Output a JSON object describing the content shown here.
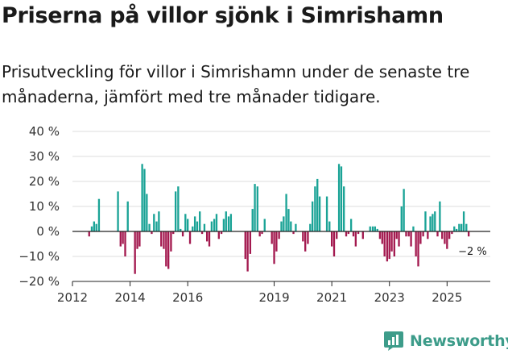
{
  "header": {
    "title": "Priserna på villor sjönk i Simrishamn",
    "subtitle": "Prisutveckling för villor i Simrishamn under de senaste tre månaderna, jämfört med tre månader tidigare."
  },
  "brand": {
    "name": "Newsworthy"
  },
  "colors": {
    "positive": "#1aa396",
    "negative": "#a3194f",
    "grid": "#dddddd",
    "axis": "#222222",
    "brand": "#3d9c8a"
  },
  "chart_data": {
    "type": "bar",
    "title": "",
    "xlabel": "",
    "ylabel": "",
    "ylim": [
      -20,
      40
    ],
    "y_ticks": [
      40,
      30,
      20,
      10,
      0,
      -10,
      -20
    ],
    "y_tick_labels": [
      "40 %",
      "30 %",
      "20 %",
      "10 %",
      "0 %",
      "−10 %",
      "−20 %"
    ],
    "xlim": [
      2012,
      2026.5
    ],
    "x_ticks": [
      2012,
      2014,
      2016,
      2019,
      2021,
      2023,
      2025
    ],
    "x_tick_labels": [
      "2012",
      "2014",
      "2016",
      "2019",
      "2021",
      "2023",
      "2025"
    ],
    "series": [
      {
        "name": "Prisutveckling",
        "points": [
          [
            2012.58,
            -2
          ],
          [
            2012.67,
            2
          ],
          [
            2012.75,
            4
          ],
          [
            2012.83,
            3
          ],
          [
            2012.92,
            13
          ],
          [
            2013.58,
            16
          ],
          [
            2013.67,
            -6
          ],
          [
            2013.75,
            -5
          ],
          [
            2013.83,
            -10
          ],
          [
            2013.92,
            12
          ],
          [
            2014.17,
            -17
          ],
          [
            2014.25,
            -7
          ],
          [
            2014.33,
            -6
          ],
          [
            2014.42,
            27
          ],
          [
            2014.5,
            25
          ],
          [
            2014.58,
            15
          ],
          [
            2014.67,
            3
          ],
          [
            2014.75,
            -1
          ],
          [
            2014.83,
            7
          ],
          [
            2014.92,
            4
          ],
          [
            2015.0,
            8
          ],
          [
            2015.08,
            -6
          ],
          [
            2015.17,
            -7
          ],
          [
            2015.25,
            -14
          ],
          [
            2015.33,
            -15
          ],
          [
            2015.42,
            -8
          ],
          [
            2015.5,
            -1
          ],
          [
            2015.58,
            16
          ],
          [
            2015.67,
            18
          ],
          [
            2015.75,
            1
          ],
          [
            2015.83,
            -2
          ],
          [
            2015.92,
            7
          ],
          [
            2016.0,
            5
          ],
          [
            2016.08,
            -5
          ],
          [
            2016.17,
            2
          ],
          [
            2016.25,
            6
          ],
          [
            2016.33,
            4
          ],
          [
            2016.42,
            8
          ],
          [
            2016.5,
            -1
          ],
          [
            2016.58,
            3
          ],
          [
            2016.67,
            -4
          ],
          [
            2016.75,
            -6
          ],
          [
            2016.83,
            4
          ],
          [
            2016.92,
            5
          ],
          [
            2017.0,
            7
          ],
          [
            2017.08,
            -3
          ],
          [
            2017.17,
            -1
          ],
          [
            2017.25,
            5
          ],
          [
            2017.33,
            8
          ],
          [
            2017.42,
            6
          ],
          [
            2017.5,
            7
          ],
          [
            2018.0,
            -11
          ],
          [
            2018.08,
            -16
          ],
          [
            2018.17,
            -9
          ],
          [
            2018.25,
            9
          ],
          [
            2018.33,
            19
          ],
          [
            2018.42,
            18
          ],
          [
            2018.5,
            -2
          ],
          [
            2018.58,
            -1
          ],
          [
            2018.67,
            5
          ],
          [
            2018.92,
            -5
          ],
          [
            2019.0,
            -13
          ],
          [
            2019.08,
            -8
          ],
          [
            2019.17,
            -3
          ],
          [
            2019.25,
            4
          ],
          [
            2019.33,
            6
          ],
          [
            2019.42,
            15
          ],
          [
            2019.5,
            9
          ],
          [
            2019.58,
            4
          ],
          [
            2019.67,
            -1
          ],
          [
            2019.75,
            3
          ],
          [
            2020.0,
            -4
          ],
          [
            2020.08,
            -8
          ],
          [
            2020.17,
            -5
          ],
          [
            2020.25,
            3
          ],
          [
            2020.33,
            12
          ],
          [
            2020.42,
            18
          ],
          [
            2020.5,
            21
          ],
          [
            2020.58,
            14
          ],
          [
            2020.83,
            14
          ],
          [
            2020.92,
            4
          ],
          [
            2021.0,
            -6
          ],
          [
            2021.08,
            -10
          ],
          [
            2021.17,
            -3
          ],
          [
            2021.25,
            27
          ],
          [
            2021.33,
            26
          ],
          [
            2021.42,
            18
          ],
          [
            2021.5,
            -2
          ],
          [
            2021.58,
            -1
          ],
          [
            2021.67,
            5
          ],
          [
            2021.75,
            -2
          ],
          [
            2021.83,
            -6
          ],
          [
            2021.92,
            -1
          ],
          [
            2022.08,
            -3
          ],
          [
            2022.33,
            2
          ],
          [
            2022.42,
            2
          ],
          [
            2022.5,
            2
          ],
          [
            2022.58,
            1
          ],
          [
            2022.67,
            -3
          ],
          [
            2022.75,
            -5
          ],
          [
            2022.83,
            -10
          ],
          [
            2022.92,
            -12
          ],
          [
            2023.0,
            -11
          ],
          [
            2023.08,
            -8
          ],
          [
            2023.17,
            -10
          ],
          [
            2023.25,
            -3
          ],
          [
            2023.33,
            -6
          ],
          [
            2023.42,
            10
          ],
          [
            2023.5,
            17
          ],
          [
            2023.58,
            -2
          ],
          [
            2023.67,
            -2
          ],
          [
            2023.75,
            -6
          ],
          [
            2023.83,
            2
          ],
          [
            2023.92,
            -10
          ],
          [
            2024.0,
            -14
          ],
          [
            2024.08,
            -5
          ],
          [
            2024.17,
            -2
          ],
          [
            2024.25,
            8
          ],
          [
            2024.33,
            -3
          ],
          [
            2024.42,
            6
          ],
          [
            2024.5,
            7
          ],
          [
            2024.58,
            8
          ],
          [
            2024.67,
            -2
          ],
          [
            2024.75,
            12
          ],
          [
            2024.83,
            -3
          ],
          [
            2024.92,
            -5
          ],
          [
            2025.0,
            -7
          ],
          [
            2025.08,
            -3
          ],
          [
            2025.17,
            -1
          ],
          [
            2025.25,
            2
          ],
          [
            2025.33,
            1
          ],
          [
            2025.42,
            3
          ],
          [
            2025.5,
            3
          ],
          [
            2025.58,
            8
          ],
          [
            2025.67,
            3
          ],
          [
            2025.75,
            -2
          ]
        ]
      }
    ],
    "annotation": {
      "text": "−2 %",
      "x": 2025.75,
      "y": -2
    }
  }
}
